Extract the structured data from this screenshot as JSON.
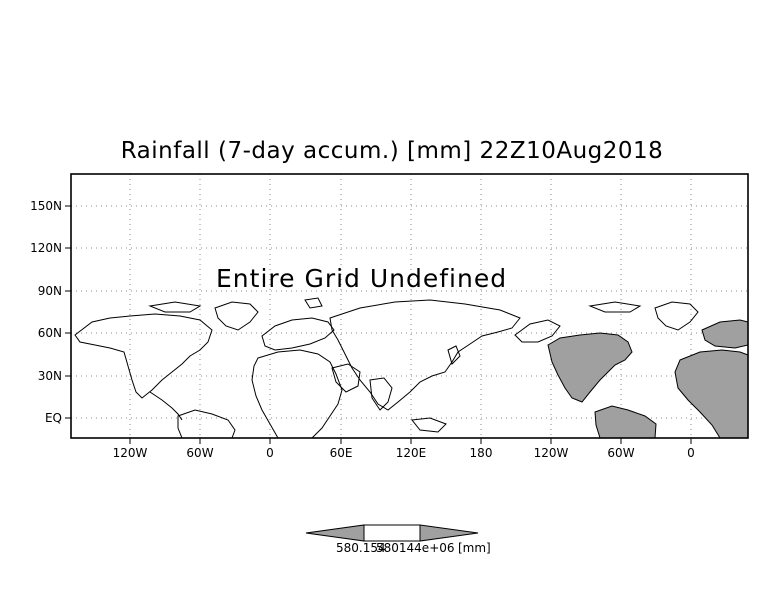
{
  "title": "Rainfall (7-day accum.) [mm] 22Z10Aug2018",
  "overlay_message": "Entire Grid Undefined",
  "y_ticks": [
    "150N",
    "120N",
    "90N",
    "60N",
    "30N",
    "EQ"
  ],
  "x_ticks": [
    "120W",
    "60W",
    "0",
    "60E",
    "120E",
    "180",
    "120W",
    "60W",
    "0"
  ],
  "colorbar": {
    "label_left": "580.154",
    "label_mid": "580144e+06",
    "unit": "[mm]",
    "fill_color": "#a0a0a0"
  },
  "colors": {
    "land_shaded": "#a0a0a0",
    "grid": "#888888",
    "frame": "#000000"
  },
  "map": {
    "type": "cylindrical-lon-lat",
    "grid": true,
    "grid_style": "dotted",
    "shaded_region": "Americas and Africa on repeated eastern portion"
  }
}
